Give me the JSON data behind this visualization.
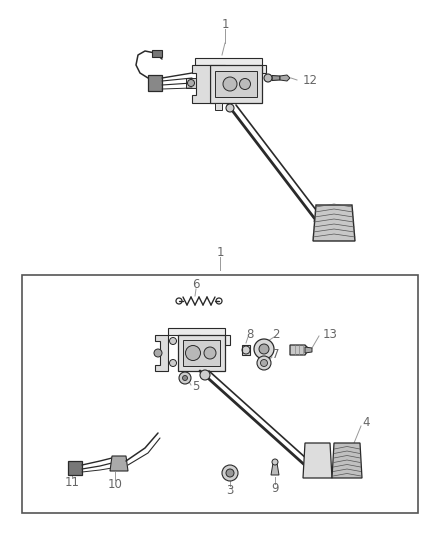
{
  "bg_color": "#ffffff",
  "lc": "#2a2a2a",
  "gray_label": "#666666",
  "leader_color": "#999999",
  "fig_width": 4.38,
  "fig_height": 5.33,
  "dpi": 100
}
